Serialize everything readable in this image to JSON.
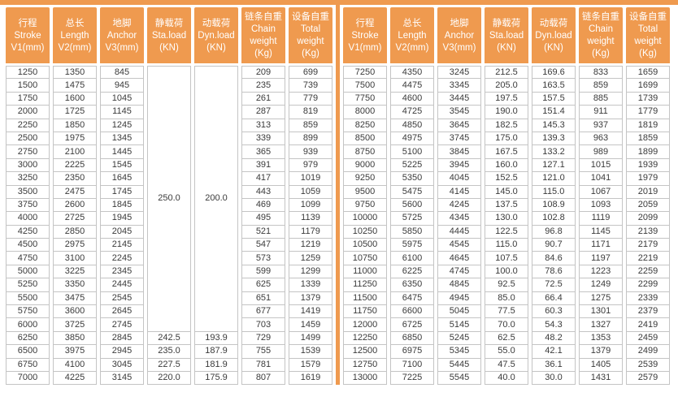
{
  "accent_color": "#EF9A4F",
  "border_color": "#C4C4C4",
  "text_color": "#3A3A3A",
  "header": {
    "columns": [
      {
        "name": "stroke",
        "lines": [
          "行程",
          "Stroke",
          "V1(mm)"
        ]
      },
      {
        "name": "length",
        "lines": [
          "总长",
          "Length",
          "V2(mm)"
        ]
      },
      {
        "name": "anchor",
        "lines": [
          "地脚",
          "Anchor",
          "V3(mm)"
        ]
      },
      {
        "name": "static-load",
        "lines": [
          "静载荷",
          "Sta.load",
          "(KN)"
        ]
      },
      {
        "name": "dynamic-load",
        "lines": [
          "动载荷",
          "Dyn.load",
          "(KN)"
        ]
      },
      {
        "name": "chain-weight",
        "lines": [
          "链条自重",
          "Chain",
          "weight",
          "(Kg)"
        ]
      },
      {
        "name": "total-weight",
        "lines": [
          "设备自重",
          "Total",
          "weight",
          "(Kg)"
        ]
      }
    ]
  },
  "tables": [
    {
      "name": "left",
      "merged": [
        {
          "row": 0,
          "col": 3,
          "span": 20
        },
        {
          "row": 0,
          "col": 4,
          "span": 20
        }
      ],
      "rows": [
        [
          "1250",
          "1350",
          "845",
          "250.0",
          "200.0",
          "209",
          "699"
        ],
        [
          "1500",
          "1475",
          "945",
          null,
          null,
          "235",
          "739"
        ],
        [
          "1750",
          "1600",
          "1045",
          null,
          null,
          "261",
          "779"
        ],
        [
          "2000",
          "1725",
          "1145",
          null,
          null,
          "287",
          "819"
        ],
        [
          "2250",
          "1850",
          "1245",
          null,
          null,
          "313",
          "859"
        ],
        [
          "2500",
          "1975",
          "1345",
          null,
          null,
          "339",
          "899"
        ],
        [
          "2750",
          "2100",
          "1445",
          null,
          null,
          "365",
          "939"
        ],
        [
          "3000",
          "2225",
          "1545",
          null,
          null,
          "391",
          "979"
        ],
        [
          "3250",
          "2350",
          "1645",
          null,
          null,
          "417",
          "1019"
        ],
        [
          "3500",
          "2475",
          "1745",
          null,
          null,
          "443",
          "1059"
        ],
        [
          "3750",
          "2600",
          "1845",
          null,
          null,
          "469",
          "1099"
        ],
        [
          "4000",
          "2725",
          "1945",
          null,
          null,
          "495",
          "1139"
        ],
        [
          "4250",
          "2850",
          "2045",
          null,
          null,
          "521",
          "1179"
        ],
        [
          "4500",
          "2975",
          "2145",
          null,
          null,
          "547",
          "1219"
        ],
        [
          "4750",
          "3100",
          "2245",
          null,
          null,
          "573",
          "1259"
        ],
        [
          "5000",
          "3225",
          "2345",
          null,
          null,
          "599",
          "1299"
        ],
        [
          "5250",
          "3350",
          "2445",
          null,
          null,
          "625",
          "1339"
        ],
        [
          "5500",
          "3475",
          "2545",
          null,
          null,
          "651",
          "1379"
        ],
        [
          "5750",
          "3600",
          "2645",
          null,
          null,
          "677",
          "1419"
        ],
        [
          "6000",
          "3725",
          "2745",
          null,
          null,
          "703",
          "1459"
        ],
        [
          "6250",
          "3850",
          "2845",
          "242.5",
          "193.9",
          "729",
          "1499"
        ],
        [
          "6500",
          "3975",
          "2945",
          "235.0",
          "187.9",
          "755",
          "1539"
        ],
        [
          "6750",
          "4100",
          "3045",
          "227.5",
          "181.9",
          "781",
          "1579"
        ],
        [
          "7000",
          "4225",
          "3145",
          "220.0",
          "175.9",
          "807",
          "1619"
        ]
      ]
    },
    {
      "name": "right",
      "merged": [],
      "rows": [
        [
          "7250",
          "4350",
          "3245",
          "212.5",
          "169.6",
          "833",
          "1659"
        ],
        [
          "7500",
          "4475",
          "3345",
          "205.0",
          "163.5",
          "859",
          "1699"
        ],
        [
          "7750",
          "4600",
          "3445",
          "197.5",
          "157.5",
          "885",
          "1739"
        ],
        [
          "8000",
          "4725",
          "3545",
          "190.0",
          "151.4",
          "911",
          "1779"
        ],
        [
          "8250",
          "4850",
          "3645",
          "182.5",
          "145.3",
          "937",
          "1819"
        ],
        [
          "8500",
          "4975",
          "3745",
          "175.0",
          "139.3",
          "963",
          "1859"
        ],
        [
          "8750",
          "5100",
          "3845",
          "167.5",
          "133.2",
          "989",
          "1899"
        ],
        [
          "9000",
          "5225",
          "3945",
          "160.0",
          "127.1",
          "1015",
          "1939"
        ],
        [
          "9250",
          "5350",
          "4045",
          "152.5",
          "121.0",
          "1041",
          "1979"
        ],
        [
          "9500",
          "5475",
          "4145",
          "145.0",
          "115.0",
          "1067",
          "2019"
        ],
        [
          "9750",
          "5600",
          "4245",
          "137.5",
          "108.9",
          "1093",
          "2059"
        ],
        [
          "10000",
          "5725",
          "4345",
          "130.0",
          "102.8",
          "1119",
          "2099"
        ],
        [
          "10250",
          "5850",
          "4445",
          "122.5",
          "96.8",
          "1145",
          "2139"
        ],
        [
          "10500",
          "5975",
          "4545",
          "115.0",
          "90.7",
          "1171",
          "2179"
        ],
        [
          "10750",
          "6100",
          "4645",
          "107.5",
          "84.6",
          "1197",
          "2219"
        ],
        [
          "11000",
          "6225",
          "4745",
          "100.0",
          "78.6",
          "1223",
          "2259"
        ],
        [
          "11250",
          "6350",
          "4845",
          "92.5",
          "72.5",
          "1249",
          "2299"
        ],
        [
          "11500",
          "6475",
          "4945",
          "85.0",
          "66.4",
          "1275",
          "2339"
        ],
        [
          "11750",
          "6600",
          "5045",
          "77.5",
          "60.3",
          "1301",
          "2379"
        ],
        [
          "12000",
          "6725",
          "5145",
          "70.0",
          "54.3",
          "1327",
          "2419"
        ],
        [
          "12250",
          "6850",
          "5245",
          "62.5",
          "48.2",
          "1353",
          "2459"
        ],
        [
          "12500",
          "6975",
          "5345",
          "55.0",
          "42.1",
          "1379",
          "2499"
        ],
        [
          "12750",
          "7100",
          "5445",
          "47.5",
          "36.1",
          "1405",
          "2539"
        ],
        [
          "13000",
          "7225",
          "5545",
          "40.0",
          "30.0",
          "1431",
          "2579"
        ]
      ]
    }
  ]
}
